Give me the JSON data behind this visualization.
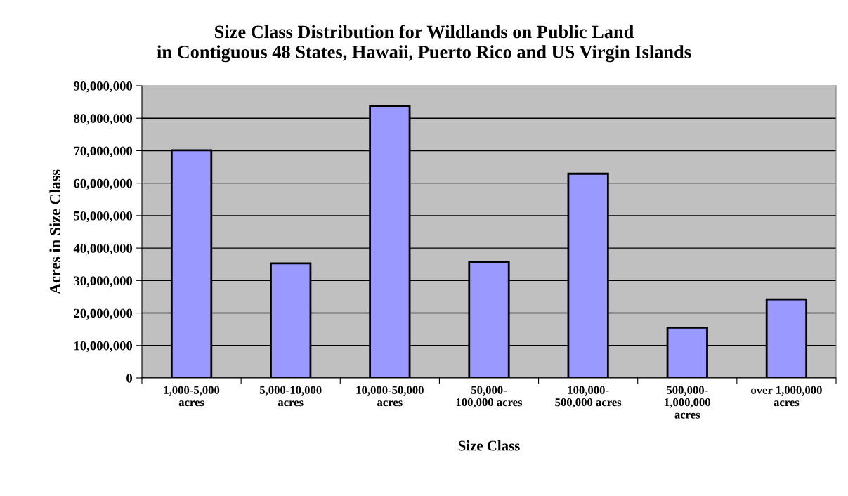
{
  "chart_data": {
    "type": "bar",
    "title": "Size Class Distribution for Wildlands on Public Land\nin Contiguous 48 States, Hawaii, Puerto Rico and US Virgin Islands",
    "xlabel": "Size Class",
    "ylabel": "Acres in Size Class",
    "categories": [
      "1,000-5,000\nacres",
      "5,000-10,000\nacres",
      "10,000-50,000\nacres",
      "50,000-\n100,000 acres",
      "100,000-\n500,000 acres",
      "500,000-\n1,000,000\nacres",
      "over 1,000,000\nacres"
    ],
    "values": [
      70100000,
      35300000,
      83700000,
      35800000,
      62900000,
      15500000,
      24200000
    ],
    "color": "#9999ff",
    "ylim": [
      0,
      90000000
    ],
    "yticks": [
      {
        "value": 0,
        "label": "0"
      },
      {
        "value": 10000000,
        "label": "10,000,000"
      },
      {
        "value": 20000000,
        "label": "20,000,000"
      },
      {
        "value": 30000000,
        "label": "30,000,000"
      },
      {
        "value": 40000000,
        "label": "40,000,000"
      },
      {
        "value": 50000000,
        "label": "50,000,000"
      },
      {
        "value": 60000000,
        "label": "60,000,000"
      },
      {
        "value": 70000000,
        "label": "70,000,000"
      },
      {
        "value": 80000000,
        "label": "80,000,000"
      },
      {
        "value": 90000000,
        "label": "90,000,000"
      }
    ],
    "grid": "y",
    "legend": false
  }
}
